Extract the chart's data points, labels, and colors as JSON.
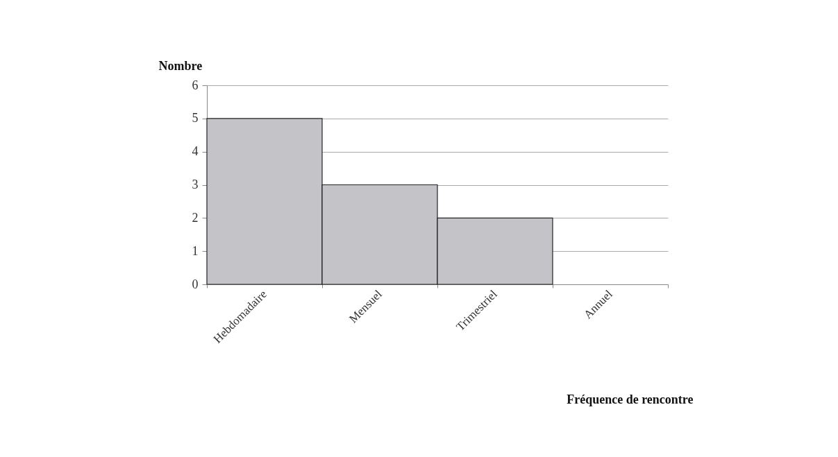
{
  "chart_data": {
    "type": "bar",
    "xlabel": "Fréquence de rencontre",
    "ylabel": "Nombre",
    "categories": [
      "Hebdomadaire",
      "Mensuel",
      "Trimestriel",
      "Annuel"
    ],
    "values": [
      5,
      3,
      2,
      0
    ],
    "color": "#c4c4c8",
    "ylim": [
      0,
      6
    ],
    "yticks": [
      0,
      1,
      2,
      3,
      4,
      5,
      6
    ],
    "grid": "y"
  }
}
